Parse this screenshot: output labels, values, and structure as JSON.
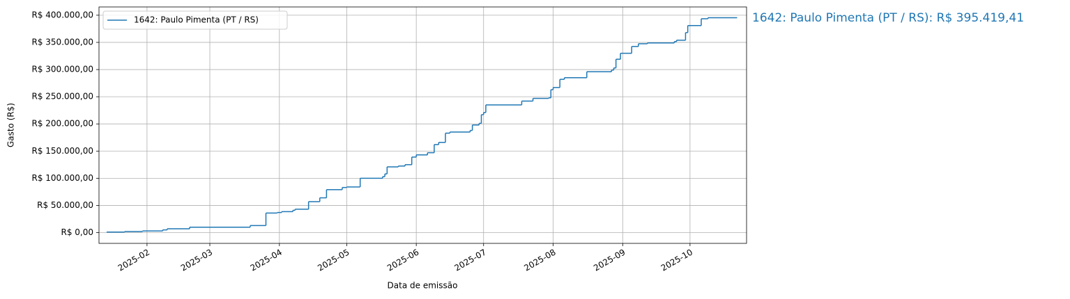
{
  "chart_data": {
    "type": "step",
    "x_label": "Data de emissão",
    "y_label": "Gasto (R$)",
    "annotation": "1642: Paulo Pimenta (PT / RS): R$ 395.419,41",
    "legend": "upper left",
    "grid": true,
    "xlim": [
      10.6,
      299.2
    ],
    "xticks": [
      {
        "value": 32,
        "label": "2025-02"
      },
      {
        "value": 60,
        "label": "2025-03"
      },
      {
        "value": 91,
        "label": "2025-04"
      },
      {
        "value": 121,
        "label": "2025-05"
      },
      {
        "value": 152,
        "label": "2025-06"
      },
      {
        "value": 182,
        "label": "2025-07"
      },
      {
        "value": 213,
        "label": "2025-08"
      },
      {
        "value": 244,
        "label": "2025-09"
      },
      {
        "value": 274,
        "label": "2025-10"
      }
    ],
    "ylim": [
      -19800,
      415200
    ],
    "yticks": [
      {
        "value": 0,
        "label": "R$ 0,00"
      },
      {
        "value": 50000,
        "label": "R$ 50.000,00"
      },
      {
        "value": 100000,
        "label": "R$ 100.000,00"
      },
      {
        "value": 150000,
        "label": "R$ 150.000,00"
      },
      {
        "value": 200000,
        "label": "R$ 200.000,00"
      },
      {
        "value": 250000,
        "label": "R$ 250.000,00"
      },
      {
        "value": 300000,
        "label": "R$ 300.000,00"
      },
      {
        "value": 350000,
        "label": "R$ 350.000,00"
      },
      {
        "value": 400000,
        "label": "R$ 400.000,00"
      }
    ],
    "x": [
      14,
      22,
      30,
      39,
      41,
      51,
      78,
      85,
      90,
      92,
      97,
      98,
      104,
      109,
      112,
      119,
      121,
      127,
      137,
      138,
      139,
      144,
      147,
      150,
      152,
      157,
      160,
      162,
      165,
      167,
      176,
      177,
      180,
      181,
      182,
      183,
      199,
      204,
      211,
      212,
      213,
      216,
      218,
      228,
      239,
      240,
      241,
      243,
      248,
      251,
      255,
      267,
      268,
      272,
      273,
      279,
      282,
      295
    ],
    "series": [
      {
        "name": "1642: Paulo Pimenta (PT / RS)",
        "color": "#1f77b4",
        "values": [
          1000,
          2000,
          3000,
          5000,
          7000,
          10000,
          13000,
          36000,
          37000,
          38500,
          41000,
          43000,
          57000,
          64000,
          79000,
          83000,
          84000,
          100000,
          103000,
          108000,
          121000,
          122500,
          125000,
          139000,
          143000,
          147000,
          162000,
          166000,
          183000,
          185000,
          188000,
          198000,
          201000,
          217000,
          221000,
          235000,
          242000,
          247000,
          248000,
          263000,
          267000,
          282000,
          285000,
          296000,
          299000,
          303000,
          319000,
          330000,
          342500,
          347500,
          349000,
          351500,
          354000,
          368000,
          381000,
          393500,
          395419.41,
          395419.41
        ]
      }
    ]
  }
}
